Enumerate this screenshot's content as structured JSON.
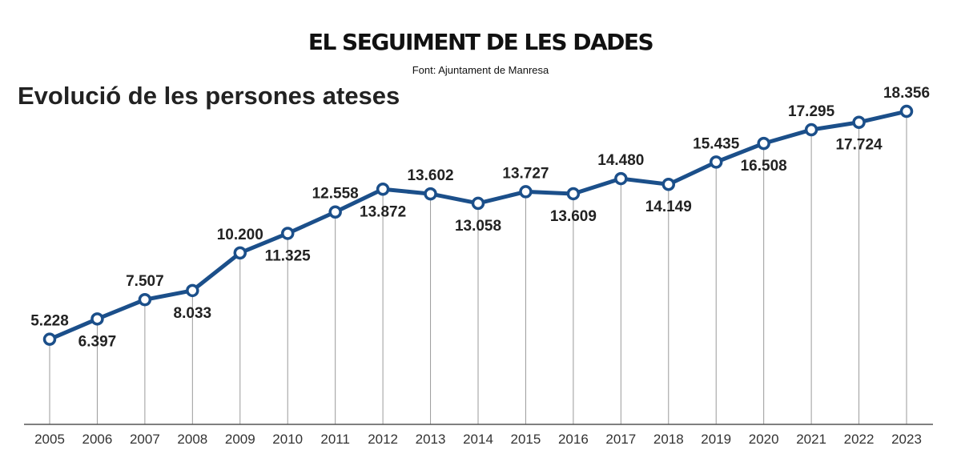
{
  "header": {
    "title": "EL SEGUIMENT DE LES DADES",
    "source": "Font: Ajuntament de Manresa"
  },
  "chart_data": {
    "type": "line",
    "title": "Evolució de les persones ateses",
    "xlabel": "",
    "ylabel": "",
    "ylim": [
      0,
      19000
    ],
    "grid": false,
    "line_color": "#1b4f8a",
    "x": [
      "2005",
      "2006",
      "2007",
      "2008",
      "2009",
      "2010",
      "2011",
      "2012",
      "2013",
      "2014",
      "2015",
      "2016",
      "2017",
      "2018",
      "2019",
      "2020",
      "2021",
      "2022",
      "2023"
    ],
    "values": [
      5228,
      6397,
      7507,
      8033,
      10200,
      11325,
      12558,
      13872,
      13602,
      13058,
      13727,
      13609,
      14480,
      14149,
      15435,
      16508,
      17295,
      17724,
      18356
    ],
    "labels": [
      "5.228",
      "6.397",
      "7.507",
      "8.033",
      "10.200",
      "11.325",
      "12.558",
      "13.872",
      "13.602",
      "13.058",
      "13.727",
      "13.609",
      "14.480",
      "14.149",
      "15.435",
      "16.508",
      "17.295",
      "17.724",
      "18.356"
    ],
    "label_positions": [
      "above",
      "below",
      "above",
      "below",
      "above",
      "below",
      "above",
      "below",
      "above",
      "below",
      "above",
      "below",
      "above",
      "below",
      "above",
      "below",
      "above",
      "below",
      "above"
    ]
  }
}
